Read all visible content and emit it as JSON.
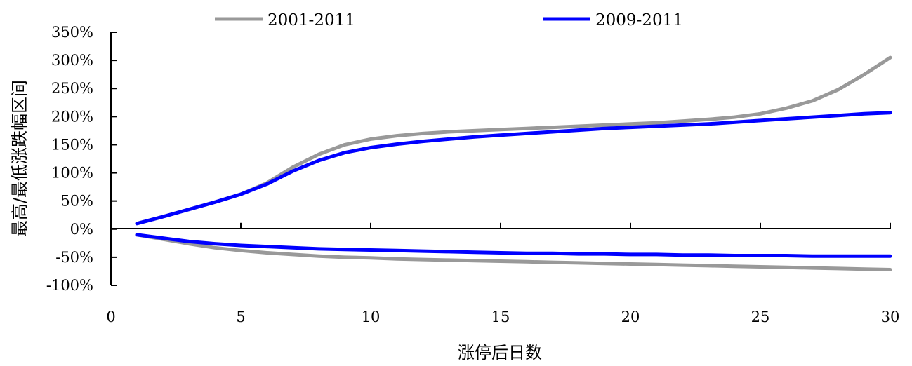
{
  "chart_data": {
    "type": "line",
    "xlabel": "涨停后日数",
    "ylabel": "最高/最低涨跌幅区间",
    "xlim": [
      0,
      30
    ],
    "ylim": [
      -100,
      350
    ],
    "x_ticks": [
      "0",
      "5",
      "10",
      "15",
      "20",
      "25",
      "30"
    ],
    "y_ticks": [
      "350%",
      "300%",
      "250%",
      "200%",
      "150%",
      "100%",
      "50%",
      "0%",
      "-50%",
      "-100%"
    ],
    "legend_position": "top",
    "grid": false,
    "x": [
      1,
      2,
      3,
      4,
      5,
      6,
      7,
      8,
      9,
      10,
      11,
      12,
      13,
      14,
      15,
      16,
      17,
      18,
      19,
      20,
      21,
      22,
      23,
      24,
      25,
      26,
      27,
      28,
      29,
      30
    ],
    "series": [
      {
        "name": "2001-2011",
        "color": "#999999",
        "upper": [
          10,
          22,
          35,
          48,
          62,
          82,
          110,
          133,
          150,
          160,
          166,
          170,
          173,
          175,
          177,
          179,
          181,
          183,
          185,
          187,
          189,
          192,
          195,
          199,
          205,
          215,
          228,
          248,
          275,
          305
        ],
        "lower": [
          -10,
          -18,
          -26,
          -33,
          -38,
          -42,
          -45,
          -48,
          -50,
          -51,
          -53,
          -54,
          -55,
          -56,
          -57,
          -58,
          -59,
          -60,
          -61,
          -62,
          -63,
          -64,
          -65,
          -66,
          -67,
          -68,
          -69,
          -70,
          -71,
          -72
        ]
      },
      {
        "name": "2009-2011",
        "color": "#0000ff",
        "upper": [
          10,
          22,
          35,
          48,
          62,
          80,
          103,
          122,
          136,
          145,
          151,
          156,
          160,
          164,
          167,
          170,
          173,
          176,
          179,
          181,
          183,
          185,
          187,
          190,
          193,
          196,
          199,
          202,
          205,
          207
        ],
        "lower": [
          -10,
          -16,
          -22,
          -26,
          -29,
          -31,
          -33,
          -35,
          -36,
          -37,
          -38,
          -39,
          -40,
          -41,
          -42,
          -43,
          -43,
          -44,
          -44,
          -45,
          -45,
          -46,
          -46,
          -47,
          -47,
          -47,
          -48,
          -48,
          -48,
          -48
        ]
      }
    ]
  }
}
